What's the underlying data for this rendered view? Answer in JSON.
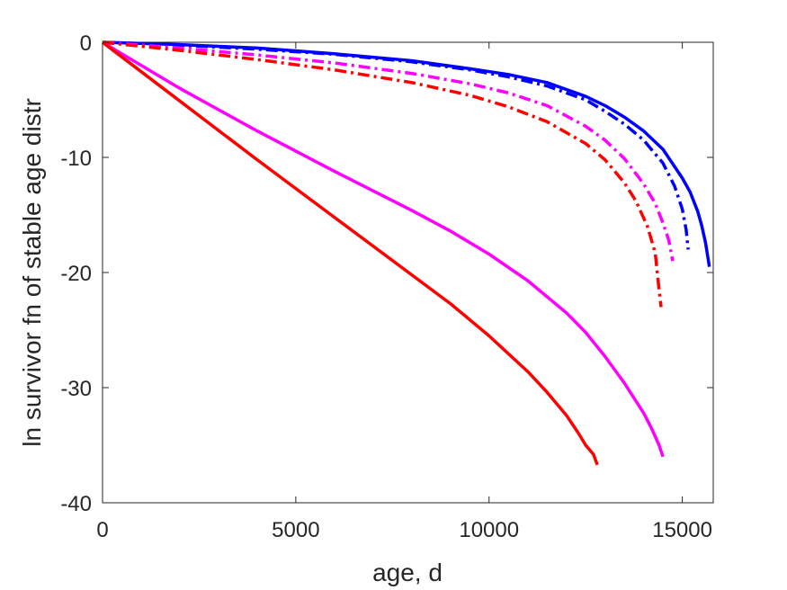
{
  "chart_data": {
    "type": "line",
    "title": "",
    "xlabel": "age, d",
    "ylabel": "ln survivor fn of stable age distr",
    "xlim": [
      0,
      15800
    ],
    "ylim": [
      -40,
      0
    ],
    "xticks": [
      0,
      5000,
      10000,
      15000
    ],
    "yticks": [
      -40,
      -30,
      -20,
      -10,
      0
    ],
    "grid": false,
    "series": [
      {
        "color": "#0000ff",
        "style": "solid",
        "x": [
          0,
          2000,
          4000,
          6000,
          8000,
          9500,
          10500,
          11500,
          12500,
          13000,
          13500,
          14000,
          14500,
          15000,
          15200,
          15400,
          15500,
          15600,
          15700
        ],
        "y": [
          0,
          -0.2,
          -0.5,
          -1.0,
          -1.6,
          -2.3,
          -2.8,
          -3.5,
          -4.7,
          -5.5,
          -6.5,
          -7.7,
          -9.3,
          -11.8,
          -13.0,
          -14.7,
          -15.9,
          -17.4,
          -19.5
        ]
      },
      {
        "color": "#0000ff",
        "style": "dashdot",
        "x": [
          0,
          2000,
          4000,
          6000,
          8000,
          9500,
          10500,
          11500,
          12500,
          13000,
          13500,
          14000,
          14500,
          14800,
          15000,
          15100,
          15150
        ],
        "y": [
          0,
          -0.25,
          -0.6,
          -1.05,
          -1.7,
          -2.4,
          -3.0,
          -3.8,
          -5.0,
          -6.0,
          -7.1,
          -8.5,
          -10.5,
          -12.5,
          -14.5,
          -16.3,
          -18.0
        ]
      },
      {
        "color": "#ff00ff",
        "style": "dashdot",
        "x": [
          0,
          2000,
          4000,
          6000,
          8000,
          9500,
          10500,
          11500,
          12500,
          13000,
          13500,
          14000,
          14300,
          14500,
          14650,
          14750
        ],
        "y": [
          0,
          -0.5,
          -1.1,
          -1.8,
          -2.7,
          -3.6,
          -4.4,
          -5.5,
          -7.3,
          -8.5,
          -10.1,
          -12.3,
          -14.0,
          -15.7,
          -17.2,
          -19.0
        ]
      },
      {
        "color": "#ff0000",
        "style": "dashdot",
        "x": [
          0,
          2000,
          4000,
          6000,
          8000,
          9500,
          10500,
          11500,
          12500,
          13000,
          13500,
          13800,
          14100,
          14300,
          14400,
          14450
        ],
        "y": [
          0,
          -0.7,
          -1.5,
          -2.4,
          -3.5,
          -4.6,
          -5.6,
          -6.9,
          -8.8,
          -10.2,
          -12.2,
          -13.8,
          -16.0,
          -18.3,
          -21.5,
          -23.0
        ]
      },
      {
        "color": "#ff00ff",
        "style": "solid",
        "x": [
          0,
          2000,
          4000,
          6000,
          8000,
          9000,
          10000,
          11000,
          12000,
          12500,
          13000,
          13500,
          14000,
          14200,
          14400,
          14500
        ],
        "y": [
          0,
          -4.0,
          -7.7,
          -11.2,
          -14.6,
          -16.4,
          -18.4,
          -20.7,
          -23.5,
          -25.2,
          -27.3,
          -29.6,
          -32.2,
          -33.5,
          -35.0,
          -36.0
        ]
      },
      {
        "color": "#ff0000",
        "style": "solid",
        "x": [
          0,
          2000,
          4000,
          6000,
          8000,
          9000,
          10000,
          11000,
          11500,
          12000,
          12300,
          12500,
          12700,
          12800
        ],
        "y": [
          0,
          -5.1,
          -10.2,
          -15.2,
          -20.2,
          -22.7,
          -25.5,
          -28.6,
          -30.4,
          -32.4,
          -33.9,
          -35.0,
          -35.8,
          -36.7
        ]
      }
    ]
  }
}
